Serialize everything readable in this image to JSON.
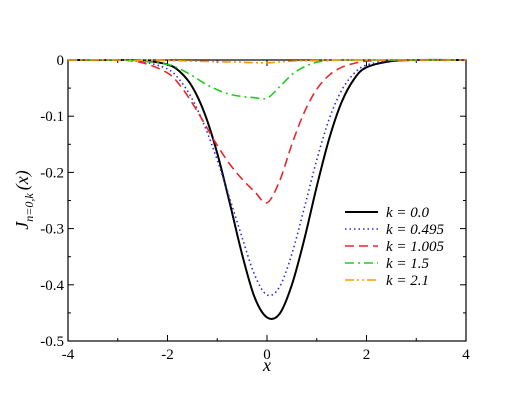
{
  "chart_data": {
    "type": "line",
    "xlabel": "x",
    "ylabel_main": "J",
    "ylabel_sub": "n=0,k",
    "ylabel_arg": "(x)",
    "xlim": [
      -4,
      4
    ],
    "ylim": [
      -0.5,
      0
    ],
    "x_ticks": [
      -4,
      -2,
      0,
      2,
      4
    ],
    "x_tick_labels": [
      "-4",
      "-2",
      "0",
      "2",
      "4"
    ],
    "y_ticks": [
      0,
      -0.1,
      -0.2,
      -0.3,
      -0.4,
      -0.5
    ],
    "y_tick_labels": [
      "0",
      "-0.1",
      "-0.2",
      "-0.3",
      "-0.4",
      "-0.5"
    ],
    "grid": false,
    "legend_position": "right-center",
    "series": [
      {
        "name": "k = 0.0",
        "color": "#000000",
        "dash": "solid",
        "x": [
          -4,
          -3,
          -2.5,
          -2,
          -1.75,
          -1.5,
          -1.25,
          -1,
          -0.75,
          -0.5,
          -0.25,
          0,
          0.25,
          0.5,
          0.75,
          1,
          1.25,
          1.5,
          1.75,
          2,
          2.5,
          3,
          4
        ],
        "y": [
          0,
          0,
          -0.001,
          -0.008,
          -0.021,
          -0.048,
          -0.096,
          -0.166,
          -0.254,
          -0.346,
          -0.422,
          -0.458,
          -0.452,
          -0.4,
          -0.319,
          -0.225,
          -0.14,
          -0.075,
          -0.034,
          -0.013,
          -0.002,
          0,
          0
        ]
      },
      {
        "name": "k = 0.495",
        "color": "#2a2adc",
        "dash": "dotted",
        "x": [
          -4,
          -3,
          -2.5,
          -2,
          -1.75,
          -1.5,
          -1.25,
          -1,
          -0.75,
          -0.5,
          -0.25,
          0,
          0.25,
          0.5,
          0.75,
          1,
          1.25,
          1.5,
          1.75,
          2,
          2.5,
          3,
          4
        ],
        "y": [
          0,
          0,
          -0.003,
          -0.016,
          -0.036,
          -0.07,
          -0.118,
          -0.178,
          -0.246,
          -0.316,
          -0.382,
          -0.418,
          -0.404,
          -0.345,
          -0.263,
          -0.178,
          -0.105,
          -0.054,
          -0.024,
          -0.009,
          -0.001,
          0,
          0
        ]
      },
      {
        "name": "k = 1.005",
        "color": "#e8282a",
        "dash": "dashed",
        "x": [
          -4,
          -3,
          -2.5,
          -2,
          -1.75,
          -1.5,
          -1.25,
          -1,
          -0.75,
          -0.5,
          -0.25,
          0,
          0.25,
          0.5,
          0.75,
          1,
          1.25,
          1.5,
          1.75,
          2,
          2.5,
          3,
          4
        ],
        "y": [
          0,
          0,
          -0.005,
          -0.023,
          -0.045,
          -0.077,
          -0.114,
          -0.152,
          -0.185,
          -0.212,
          -0.234,
          -0.254,
          -0.216,
          -0.15,
          -0.093,
          -0.052,
          -0.027,
          -0.013,
          -0.006,
          -0.002,
          0,
          0,
          0
        ]
      },
      {
        "name": "k = 1.5",
        "color": "#22cc22",
        "dash": "dashdot",
        "x": [
          -4,
          -3,
          -2.5,
          -2,
          -1.75,
          -1.5,
          -1.25,
          -1,
          -0.75,
          -0.5,
          -0.25,
          0,
          0.25,
          0.5,
          0.75,
          1,
          1.25,
          1.5,
          2,
          2.5,
          3,
          4
        ],
        "y": [
          0,
          0,
          -0.002,
          -0.008,
          -0.016,
          -0.028,
          -0.042,
          -0.053,
          -0.061,
          -0.065,
          -0.067,
          -0.068,
          -0.048,
          -0.026,
          -0.012,
          -0.004,
          -0.001,
          0,
          0,
          0,
          0,
          0
        ]
      },
      {
        "name": "k = 2.1",
        "color": "#ff9900",
        "dash": "dashdotdot",
        "x": [
          -4,
          -3,
          -2,
          -1.5,
          -1,
          -0.5,
          0,
          0.5,
          1,
          1.5,
          2,
          3,
          4
        ],
        "y": [
          0,
          0,
          -0.001,
          -0.002,
          -0.003,
          -0.004,
          -0.005,
          -0.002,
          -0.001,
          0,
          0,
          0,
          0
        ]
      }
    ]
  }
}
